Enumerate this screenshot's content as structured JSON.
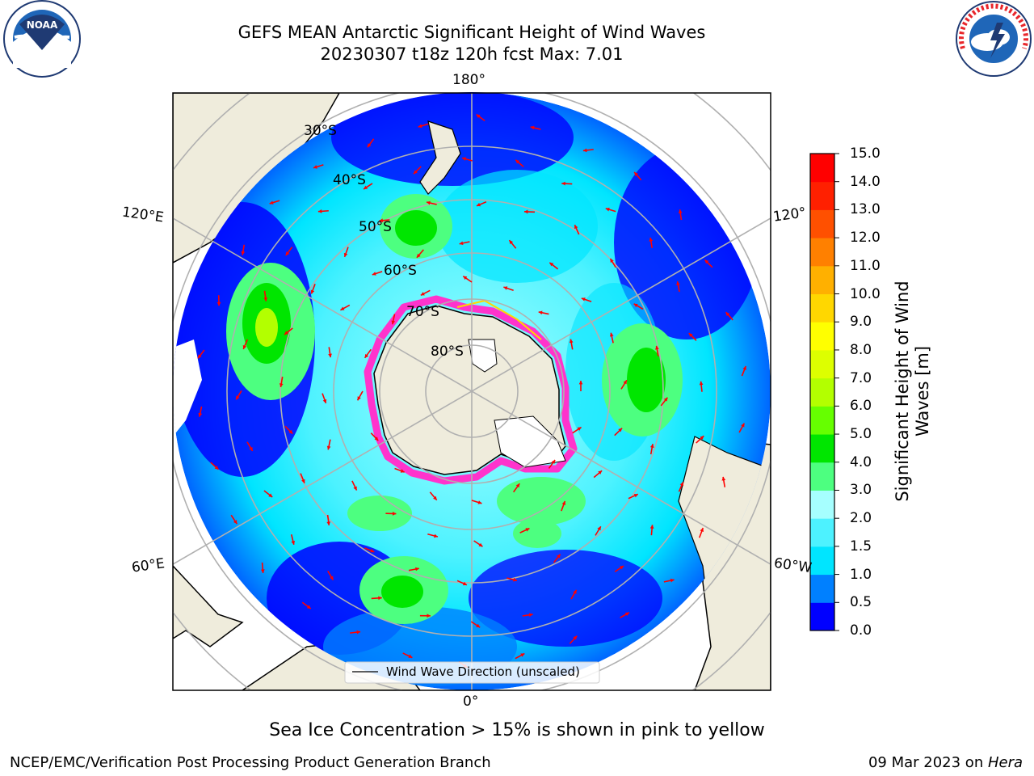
{
  "title": {
    "line1": "GEFS MEAN Antarctic Significant Height of Wind Waves",
    "line2": "20230307 t18z 120h fcst   Max: 7.01"
  },
  "map": {
    "longitude_labels": [
      "180°",
      "120°E",
      "120°",
      "60°E",
      "60°W",
      "0°"
    ],
    "latitude_labels": [
      "30°S",
      "40°S",
      "50°S",
      "60°S",
      "70°S",
      "80°S"
    ],
    "legend_label": "Wind Wave Direction (unscaled)",
    "colors": {
      "land": "#efecdc",
      "ice_edge": "#ff33cc",
      "arrow": "#ff0000",
      "grid": "#b0b0b0"
    }
  },
  "colorbar": {
    "label_line1": "Significant Height of Wind",
    "label_line2": "Waves [m]",
    "ticks": [
      "15.0",
      "14.0",
      "13.0",
      "12.0",
      "11.0",
      "10.0",
      "9.0",
      "8.0",
      "7.0",
      "6.0",
      "5.0",
      "4.0",
      "3.0",
      "2.0",
      "1.5",
      "1.0",
      "0.5",
      "0.0"
    ],
    "colors_bottom_to_top": [
      "#0000ff",
      "#0080ff",
      "#00e5ff",
      "#4df2ff",
      "#a6ffff",
      "#4dff80",
      "#00e600",
      "#66ff00",
      "#b3ff00",
      "#ddff00",
      "#ffff00",
      "#ffd700",
      "#ffb000",
      "#ff8000",
      "#ff5000",
      "#ff2000",
      "#ff0000"
    ]
  },
  "logos": {
    "noaa_text": "NOAA",
    "nws_text": "NATIONAL WEATHER SERVICE"
  },
  "footer": {
    "ice_note": "Sea Ice Concentration > 15% is shown in pink to yellow",
    "left": "NCEP/EMC/Verification Post Processing Product Generation Branch",
    "right_date": "09 Mar 2023 on ",
    "right_host": "Hera"
  }
}
